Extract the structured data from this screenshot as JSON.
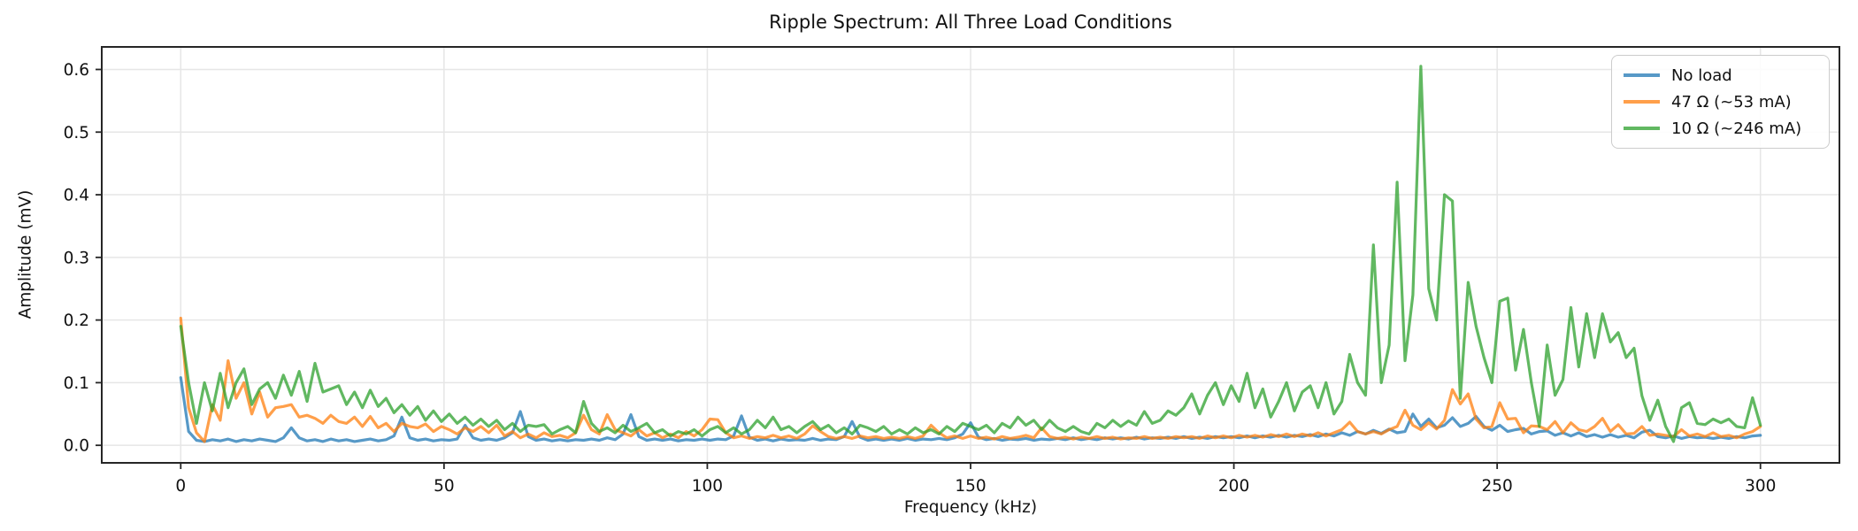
{
  "chart_data": {
    "type": "line",
    "title": "Ripple Spectrum: All Three Load Conditions",
    "xlabel": "Frequency (kHz)",
    "ylabel": "Amplitude (mV)",
    "xlim": [
      -15,
      315
    ],
    "ylim": [
      -0.028,
      0.636
    ],
    "grid": true,
    "grid_color": "#e6e6e6",
    "spine_color": "#262626",
    "tick_color": "#262626",
    "legend_position": "upper right",
    "x_start_khz": 0,
    "x_step_khz": 1.5,
    "xticks": {
      "values": [
        0,
        50,
        100,
        150,
        200,
        250,
        300
      ],
      "labels": [
        "0",
        "50",
        "100",
        "150",
        "200",
        "250",
        "300"
      ]
    },
    "yticks": {
      "values": [
        0,
        0.1,
        0.2,
        0.3,
        0.4,
        0.5,
        0.6
      ],
      "labels": [
        "0.0",
        "0.1",
        "0.2",
        "0.3",
        "0.4",
        "0.5",
        "0.6"
      ]
    },
    "series": [
      {
        "name": "No load",
        "color": "#1f77b4",
        "opacity": 0.75,
        "values": [
          0.108,
          0.022,
          0.008,
          0.006,
          0.009,
          0.007,
          0.01,
          0.006,
          0.009,
          0.007,
          0.01,
          0.008,
          0.006,
          0.012,
          0.028,
          0.012,
          0.007,
          0.009,
          0.006,
          0.01,
          0.007,
          0.009,
          0.006,
          0.008,
          0.01,
          0.007,
          0.009,
          0.015,
          0.045,
          0.012,
          0.008,
          0.01,
          0.007,
          0.009,
          0.008,
          0.01,
          0.032,
          0.012,
          0.008,
          0.01,
          0.008,
          0.012,
          0.02,
          0.054,
          0.014,
          0.008,
          0.01,
          0.007,
          0.009,
          0.007,
          0.009,
          0.008,
          0.01,
          0.008,
          0.012,
          0.009,
          0.018,
          0.049,
          0.014,
          0.008,
          0.01,
          0.008,
          0.01,
          0.007,
          0.009,
          0.008,
          0.01,
          0.008,
          0.01,
          0.009,
          0.015,
          0.047,
          0.013,
          0.008,
          0.01,
          0.007,
          0.01,
          0.008,
          0.009,
          0.008,
          0.011,
          0.008,
          0.01,
          0.009,
          0.014,
          0.038,
          0.013,
          0.008,
          0.01,
          0.008,
          0.01,
          0.008,
          0.011,
          0.008,
          0.01,
          0.009,
          0.011,
          0.009,
          0.012,
          0.018,
          0.036,
          0.013,
          0.009,
          0.011,
          0.008,
          0.01,
          0.009,
          0.011,
          0.008,
          0.01,
          0.009,
          0.011,
          0.009,
          0.012,
          0.009,
          0.011,
          0.009,
          0.012,
          0.01,
          0.012,
          0.01,
          0.013,
          0.01,
          0.012,
          0.011,
          0.013,
          0.011,
          0.014,
          0.011,
          0.013,
          0.011,
          0.014,
          0.012,
          0.014,
          0.012,
          0.015,
          0.012,
          0.015,
          0.013,
          0.016,
          0.013,
          0.016,
          0.014,
          0.017,
          0.014,
          0.018,
          0.015,
          0.02,
          0.016,
          0.022,
          0.018,
          0.024,
          0.019,
          0.026,
          0.02,
          0.022,
          0.05,
          0.03,
          0.042,
          0.028,
          0.032,
          0.044,
          0.03,
          0.035,
          0.046,
          0.03,
          0.024,
          0.032,
          0.022,
          0.025,
          0.027,
          0.018,
          0.022,
          0.023,
          0.016,
          0.02,
          0.015,
          0.02,
          0.014,
          0.017,
          0.013,
          0.017,
          0.013,
          0.016,
          0.012,
          0.021,
          0.024,
          0.014,
          0.012,
          0.015,
          0.011,
          0.014,
          0.012,
          0.013,
          0.011,
          0.013,
          0.011,
          0.014,
          0.012,
          0.015,
          0.016
        ]
      },
      {
        "name": "47 Ω (~53 mA)",
        "color": "#ff7f0e",
        "opacity": 0.75,
        "values": [
          0.203,
          0.06,
          0.02,
          0.006,
          0.065,
          0.04,
          0.135,
          0.075,
          0.1,
          0.05,
          0.085,
          0.045,
          0.06,
          0.062,
          0.065,
          0.045,
          0.048,
          0.043,
          0.035,
          0.048,
          0.038,
          0.035,
          0.045,
          0.03,
          0.046,
          0.028,
          0.035,
          0.022,
          0.035,
          0.03,
          0.028,
          0.034,
          0.022,
          0.03,
          0.025,
          0.018,
          0.028,
          0.022,
          0.03,
          0.02,
          0.032,
          0.015,
          0.022,
          0.012,
          0.018,
          0.012,
          0.02,
          0.014,
          0.016,
          0.012,
          0.02,
          0.048,
          0.025,
          0.018,
          0.049,
          0.025,
          0.02,
          0.015,
          0.025,
          0.015,
          0.02,
          0.012,
          0.018,
          0.012,
          0.022,
          0.015,
          0.025,
          0.042,
          0.041,
          0.02,
          0.012,
          0.015,
          0.011,
          0.014,
          0.012,
          0.016,
          0.012,
          0.015,
          0.011,
          0.018,
          0.031,
          0.022,
          0.014,
          0.011,
          0.014,
          0.011,
          0.015,
          0.012,
          0.014,
          0.011,
          0.013,
          0.011,
          0.014,
          0.011,
          0.015,
          0.032,
          0.02,
          0.012,
          0.015,
          0.011,
          0.015,
          0.011,
          0.013,
          0.01,
          0.014,
          0.011,
          0.013,
          0.016,
          0.012,
          0.028,
          0.014,
          0.011,
          0.013,
          0.01,
          0.013,
          0.011,
          0.014,
          0.011,
          0.013,
          0.01,
          0.012,
          0.011,
          0.014,
          0.011,
          0.013,
          0.011,
          0.014,
          0.012,
          0.014,
          0.011,
          0.015,
          0.012,
          0.015,
          0.012,
          0.016,
          0.013,
          0.016,
          0.013,
          0.017,
          0.014,
          0.018,
          0.014,
          0.018,
          0.015,
          0.02,
          0.015,
          0.02,
          0.025,
          0.037,
          0.022,
          0.018,
          0.022,
          0.018,
          0.025,
          0.03,
          0.056,
          0.032,
          0.025,
          0.036,
          0.026,
          0.04,
          0.089,
          0.066,
          0.082,
          0.042,
          0.028,
          0.03,
          0.068,
          0.042,
          0.043,
          0.02,
          0.031,
          0.03,
          0.025,
          0.038,
          0.02,
          0.036,
          0.025,
          0.022,
          0.03,
          0.043,
          0.022,
          0.033,
          0.018,
          0.019,
          0.03,
          0.016,
          0.018,
          0.016,
          0.014,
          0.025,
          0.015,
          0.018,
          0.014,
          0.02,
          0.014,
          0.016,
          0.012,
          0.018,
          0.022,
          0.03
        ]
      },
      {
        "name": "10 Ω (~246 mA)",
        "color": "#2ca02c",
        "opacity": 0.75,
        "values": [
          0.19,
          0.1,
          0.035,
          0.1,
          0.055,
          0.115,
          0.06,
          0.1,
          0.122,
          0.065,
          0.09,
          0.1,
          0.075,
          0.112,
          0.08,
          0.118,
          0.07,
          0.131,
          0.085,
          0.09,
          0.095,
          0.065,
          0.085,
          0.06,
          0.088,
          0.062,
          0.075,
          0.052,
          0.065,
          0.048,
          0.062,
          0.04,
          0.055,
          0.038,
          0.05,
          0.035,
          0.045,
          0.032,
          0.042,
          0.03,
          0.04,
          0.025,
          0.035,
          0.022,
          0.032,
          0.03,
          0.033,
          0.018,
          0.025,
          0.03,
          0.02,
          0.07,
          0.035,
          0.022,
          0.028,
          0.02,
          0.032,
          0.022,
          0.028,
          0.035,
          0.02,
          0.025,
          0.015,
          0.022,
          0.018,
          0.025,
          0.015,
          0.025,
          0.03,
          0.02,
          0.028,
          0.018,
          0.025,
          0.04,
          0.028,
          0.045,
          0.025,
          0.03,
          0.02,
          0.03,
          0.038,
          0.025,
          0.032,
          0.02,
          0.028,
          0.018,
          0.032,
          0.028,
          0.022,
          0.03,
          0.018,
          0.025,
          0.018,
          0.028,
          0.02,
          0.025,
          0.018,
          0.03,
          0.022,
          0.035,
          0.03,
          0.025,
          0.032,
          0.02,
          0.035,
          0.028,
          0.045,
          0.032,
          0.04,
          0.025,
          0.04,
          0.028,
          0.022,
          0.03,
          0.022,
          0.018,
          0.035,
          0.028,
          0.04,
          0.03,
          0.039,
          0.032,
          0.054,
          0.035,
          0.04,
          0.055,
          0.048,
          0.06,
          0.082,
          0.05,
          0.08,
          0.1,
          0.065,
          0.095,
          0.07,
          0.115,
          0.06,
          0.09,
          0.045,
          0.07,
          0.1,
          0.055,
          0.085,
          0.095,
          0.06,
          0.1,
          0.05,
          0.07,
          0.145,
          0.1,
          0.08,
          0.32,
          0.1,
          0.16,
          0.42,
          0.135,
          0.24,
          0.605,
          0.25,
          0.2,
          0.4,
          0.39,
          0.075,
          0.26,
          0.19,
          0.14,
          0.1,
          0.23,
          0.235,
          0.12,
          0.185,
          0.1,
          0.03,
          0.16,
          0.08,
          0.105,
          0.22,
          0.125,
          0.21,
          0.14,
          0.21,
          0.165,
          0.18,
          0.14,
          0.155,
          0.079,
          0.04,
          0.072,
          0.03,
          0.006,
          0.06,
          0.068,
          0.035,
          0.033,
          0.042,
          0.036,
          0.042,
          0.03,
          0.028,
          0.076,
          0.032
        ]
      }
    ]
  }
}
